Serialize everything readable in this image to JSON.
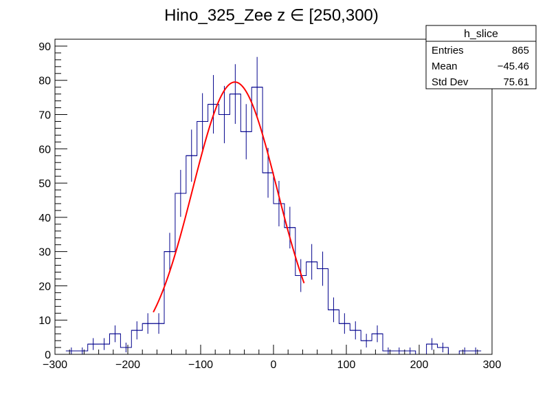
{
  "chart_data": {
    "type": "bar",
    "title": "Hino_325_Zee z  ∈ [250,300)",
    "xlabel": "",
    "ylabel": "",
    "xlim": [
      -300,
      300
    ],
    "ylim": [
      0,
      92
    ],
    "x_ticks": [
      -300,
      -200,
      -100,
      0,
      100,
      200,
      300
    ],
    "y_ticks": [
      0,
      10,
      20,
      30,
      40,
      50,
      60,
      70,
      80,
      90
    ],
    "x_tick_labels": [
      "−300",
      "−200",
      "−100",
      "0",
      "100",
      "200",
      "300"
    ],
    "y_tick_labels": [
      "0",
      "10",
      "20",
      "30",
      "40",
      "50",
      "60",
      "70",
      "80",
      "90"
    ],
    "bin_width": 15,
    "series": [
      {
        "name": "h_slice",
        "color": "#00008b",
        "bin_low_edges": [
          -285,
          -270,
          -255,
          -240,
          -225,
          -210,
          -195,
          -180,
          -165,
          -150,
          -135,
          -120,
          -105,
          -90,
          -75,
          -60,
          -45,
          -30,
          -15,
          0,
          15,
          30,
          45,
          60,
          75,
          90,
          105,
          120,
          135,
          150,
          165,
          180,
          195,
          210,
          225,
          240,
          255,
          270
        ],
        "values": [
          1,
          1,
          3,
          3,
          6,
          2,
          7,
          9,
          9,
          30,
          47,
          58,
          68,
          73,
          70,
          76,
          65,
          78,
          53,
          44,
          37,
          23,
          27,
          25,
          13,
          9,
          7,
          4,
          6,
          1,
          1,
          1,
          0,
          3,
          2,
          0,
          1,
          1
        ]
      }
    ],
    "fit": {
      "name": "gaussian fit",
      "color": "#ff0000",
      "amplitude": 79.5,
      "mean": -53,
      "sigma": 58,
      "x_range": [
        -165,
        42
      ]
    },
    "stats_box": {
      "title": "h_slice",
      "rows": [
        {
          "label": "Entries",
          "value": "865"
        },
        {
          "label": "Mean",
          "value": "−45.46"
        },
        {
          "label": "Std Dev",
          "value": "75.61"
        }
      ]
    }
  }
}
